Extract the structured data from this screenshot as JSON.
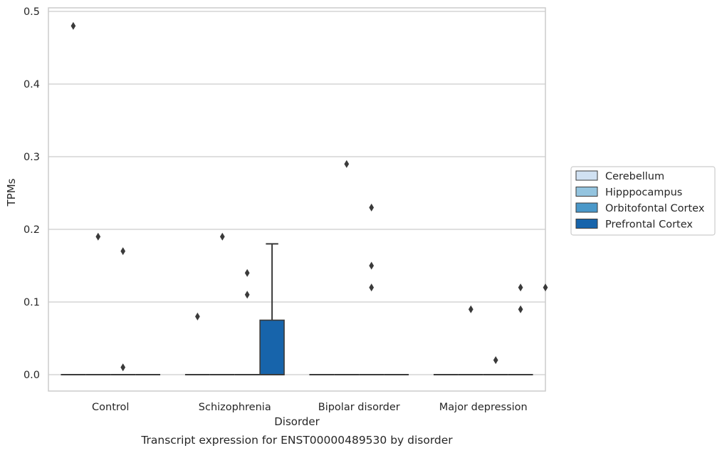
{
  "chart_data": {
    "type": "box",
    "title": "",
    "caption": "Transcript expression for ENST00000489530 by disorder",
    "xlabel": "Disorder",
    "ylabel": "TPMs",
    "ylim": [
      -0.023,
      0.505
    ],
    "yticks": [
      "0.0",
      "0.1",
      "0.2",
      "0.3",
      "0.4",
      "0.5"
    ],
    "grid": true,
    "legend_position": "right",
    "categories": [
      "Control",
      "Schizophrenia",
      "Bipolar disorder",
      "Major depression"
    ],
    "series": [
      {
        "name": "Cerebellum",
        "color": "#d0e1f2",
        "boxes": [
          {
            "q1": 0,
            "median": 0,
            "q3": 0,
            "whisker_low": 0,
            "whisker_high": 0,
            "outliers": [
              0.48
            ]
          },
          {
            "q1": 0,
            "median": 0,
            "q3": 0,
            "whisker_low": 0,
            "whisker_high": 0,
            "outliers": [
              0.08
            ]
          },
          {
            "q1": 0,
            "median": 0,
            "q3": 0,
            "whisker_low": 0,
            "whisker_high": 0,
            "outliers": []
          },
          {
            "q1": 0,
            "median": 0,
            "q3": 0,
            "whisker_low": 0,
            "whisker_high": 0,
            "outliers": []
          }
        ]
      },
      {
        "name": "Hipppocampus",
        "color": "#94c4df",
        "boxes": [
          {
            "q1": 0,
            "median": 0,
            "q3": 0,
            "whisker_low": 0,
            "whisker_high": 0,
            "outliers": [
              0.19
            ]
          },
          {
            "q1": 0,
            "median": 0,
            "q3": 0,
            "whisker_low": 0,
            "whisker_high": 0,
            "outliers": [
              0.19
            ]
          },
          {
            "q1": 0,
            "median": 0,
            "q3": 0,
            "whisker_low": 0,
            "whisker_high": 0,
            "outliers": [
              0.29
            ]
          },
          {
            "q1": 0,
            "median": 0,
            "q3": 0,
            "whisker_low": 0,
            "whisker_high": 0,
            "outliers": [
              0.09
            ]
          }
        ]
      },
      {
        "name": "Orbitofontal Cortex",
        "color": "#4a98c9",
        "boxes": [
          {
            "q1": 0,
            "median": 0,
            "q3": 0,
            "whisker_low": 0,
            "whisker_high": 0,
            "outliers": [
              0.17,
              0.01
            ]
          },
          {
            "q1": 0,
            "median": 0,
            "q3": 0,
            "whisker_low": 0,
            "whisker_high": 0,
            "outliers": [
              0.14,
              0.11
            ]
          },
          {
            "q1": 0,
            "median": 0,
            "q3": 0,
            "whisker_low": 0,
            "whisker_high": 0,
            "outliers": [
              0.23,
              0.15,
              0.12
            ]
          },
          {
            "q1": 0,
            "median": 0,
            "q3": 0,
            "whisker_low": 0,
            "whisker_high": 0,
            "outliers": [
              0.02
            ]
          }
        ]
      },
      {
        "name": "Prefrontal Cortex",
        "color": "#1764ab",
        "boxes": [
          {
            "q1": 0,
            "median": 0,
            "q3": 0,
            "whisker_low": 0,
            "whisker_high": 0,
            "outliers": []
          },
          {
            "q1": 0,
            "median": 0,
            "q3": 0.075,
            "whisker_low": 0,
            "whisker_high": 0.18,
            "outliers": []
          },
          {
            "q1": 0,
            "median": 0,
            "q3": 0,
            "whisker_low": 0,
            "whisker_high": 0,
            "outliers": []
          },
          {
            "q1": 0,
            "median": 0,
            "q3": 0,
            "whisker_low": 0,
            "whisker_high": 0,
            "outliers": [
              0.12,
              0.09
            ]
          }
        ]
      }
    ],
    "extra_outliers": [
      {
        "category_index": 3,
        "series_index": 3,
        "value": 0.12,
        "offset_slot": 4
      }
    ],
    "colors": {
      "grid": "#cccccc",
      "axes_edge": "#cccccc",
      "box_edge": "#3a3a3a",
      "text": "#262626"
    }
  }
}
